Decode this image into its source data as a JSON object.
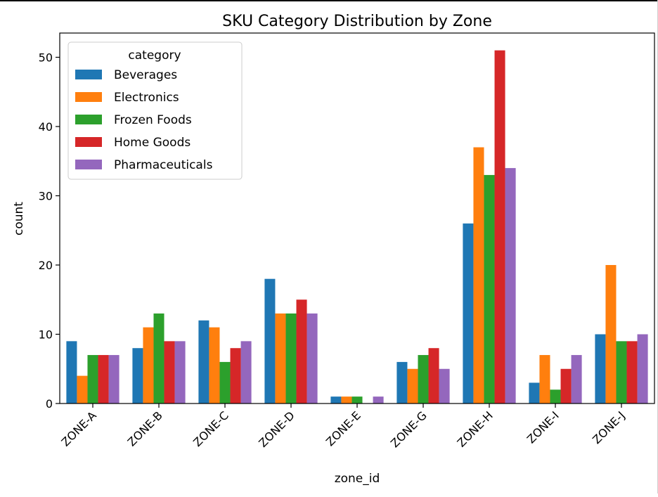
{
  "chart_data": {
    "type": "bar",
    "title": "SKU Category Distribution by Zone",
    "xlabel": "zone_id",
    "ylabel": "count",
    "ylim": [
      0,
      53.5
    ],
    "yticks": [
      0,
      10,
      20,
      30,
      40,
      50
    ],
    "grid": false,
    "legend": {
      "title": "category",
      "placement": "top-left"
    },
    "categories": [
      "ZONE-A",
      "ZONE-B",
      "ZONE-C",
      "ZONE-D",
      "ZONE-E",
      "ZONE-G",
      "ZONE-H",
      "ZONE-I",
      "ZONE-J"
    ],
    "series": [
      {
        "name": "Beverages",
        "color": "#1f77b4",
        "values": [
          9,
          8,
          12,
          18,
          1,
          6,
          26,
          3,
          10
        ]
      },
      {
        "name": "Electronics",
        "color": "#ff7f0e",
        "values": [
          4,
          11,
          11,
          13,
          1,
          5,
          37,
          7,
          20
        ]
      },
      {
        "name": "Frozen Foods",
        "color": "#2ca02c",
        "values": [
          7,
          13,
          6,
          13,
          1,
          7,
          33,
          2,
          9
        ]
      },
      {
        "name": "Home Goods",
        "color": "#d62728",
        "values": [
          7,
          9,
          8,
          15,
          0,
          8,
          51,
          5,
          9
        ]
      },
      {
        "name": "Pharmaceuticals",
        "color": "#9467bd",
        "values": [
          7,
          9,
          9,
          13,
          1,
          5,
          34,
          7,
          10
        ]
      }
    ]
  }
}
